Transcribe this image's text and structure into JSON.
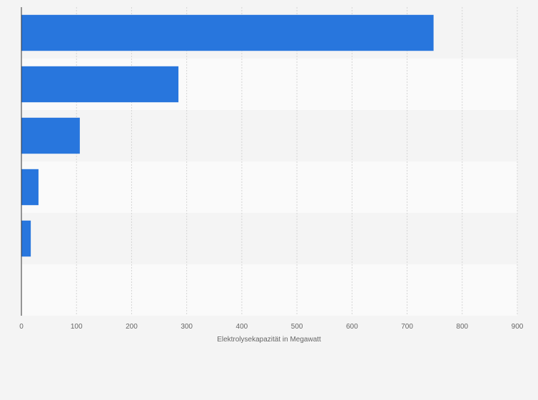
{
  "chart_data": {
    "type": "bar",
    "orientation": "horizontal",
    "categories": [
      "",
      "",
      "",
      "",
      ""
    ],
    "values": [
      748,
      285,
      106,
      31,
      17
    ],
    "xlabel": "Elektrolysekapazität in Megawatt",
    "ylabel": "",
    "xlim": [
      0,
      900
    ],
    "xticks": [
      0,
      100,
      200,
      300,
      400,
      500,
      600,
      700,
      800,
      900
    ],
    "xtick_labels": [
      "0",
      "100",
      "200",
      "300",
      "400",
      "500",
      "600",
      "700",
      "800",
      "900"
    ],
    "grid": true,
    "legend": "none",
    "bar_color": "#2876dd",
    "band_colors": [
      "#f4f4f4",
      "#fafafa"
    ]
  }
}
